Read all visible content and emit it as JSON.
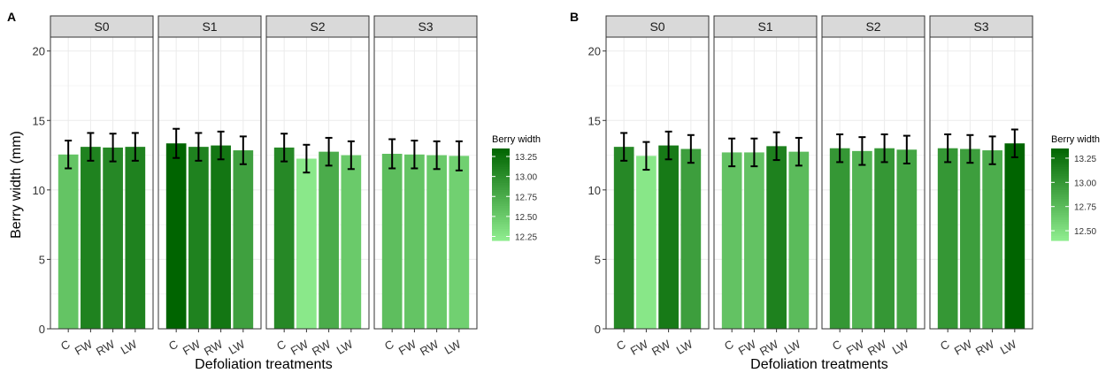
{
  "panels": [
    {
      "tag": "A",
      "ylabel": "Berry width (mm)",
      "xlabel": "Defoliation treatments",
      "yticks": [
        "0",
        "5",
        "10",
        "15",
        "20"
      ],
      "legend_title": "Berry width",
      "legend_labels": [
        "13.25",
        "13.00",
        "12.75",
        "12.50",
        "12.25"
      ],
      "facets": [
        {
          "strip": "S0",
          "categories": [
            "C",
            "FW",
            "RW",
            "LW"
          ]
        },
        {
          "strip": "S1",
          "categories": [
            "C",
            "FW",
            "RW",
            "LW"
          ]
        },
        {
          "strip": "S2",
          "categories": [
            "C",
            "FW",
            "RW",
            "LW"
          ]
        },
        {
          "strip": "S3",
          "categories": [
            "C",
            "FW",
            "RW",
            "LW"
          ]
        }
      ]
    },
    {
      "tag": "B",
      "ylabel": "",
      "xlabel": "Defoliation treatments",
      "yticks": [
        "0",
        "5",
        "10",
        "15",
        "20"
      ],
      "legend_title": "Berry width",
      "legend_labels": [
        "13.25",
        "13.00",
        "12.75",
        "12.50"
      ],
      "facets": [
        {
          "strip": "S0",
          "categories": [
            "C",
            "FW",
            "RW",
            "LW"
          ]
        },
        {
          "strip": "S1",
          "categories": [
            "C",
            "FW",
            "RW",
            "LW"
          ]
        },
        {
          "strip": "S2",
          "categories": [
            "C",
            "FW",
            "RW",
            "LW"
          ]
        },
        {
          "strip": "S3",
          "categories": [
            "C",
            "FW",
            "RW",
            "LW"
          ]
        }
      ]
    }
  ],
  "chart_data": [
    {
      "type": "bar",
      "panel": "A",
      "ylabel": "Berry width (mm)",
      "xlabel": "Defoliation treatments",
      "ylim": [
        0,
        21
      ],
      "yticks": [
        0,
        5,
        10,
        15,
        20
      ],
      "color_scale": {
        "title": "Berry width",
        "min": 12.2,
        "max": 13.35,
        "low_color": "#90EE90",
        "high_color": "#006400",
        "breaks": [
          12.25,
          12.5,
          12.75,
          13.0,
          13.25
        ]
      },
      "facets": [
        {
          "strip": "S0",
          "categories": [
            "C",
            "FW",
            "RW",
            "LW"
          ],
          "values": [
            12.55,
            13.1,
            13.05,
            13.1
          ],
          "errors": [
            1.0,
            1.0,
            1.0,
            1.0
          ]
        },
        {
          "strip": "S1",
          "categories": [
            "C",
            "FW",
            "RW",
            "LW"
          ],
          "values": [
            13.35,
            13.1,
            13.2,
            12.85
          ],
          "errors": [
            1.05,
            1.0,
            1.0,
            1.0
          ]
        },
        {
          "strip": "S2",
          "categories": [
            "C",
            "FW",
            "RW",
            "LW"
          ],
          "values": [
            13.05,
            12.25,
            12.75,
            12.5
          ],
          "errors": [
            1.0,
            1.0,
            1.0,
            1.0
          ]
        },
        {
          "strip": "S3",
          "categories": [
            "C",
            "FW",
            "RW",
            "LW"
          ],
          "values": [
            12.6,
            12.55,
            12.5,
            12.45
          ],
          "errors": [
            1.05,
            1.0,
            1.0,
            1.05
          ]
        }
      ],
      "grid": true,
      "legend_position": "right"
    },
    {
      "type": "bar",
      "panel": "B",
      "ylabel": "",
      "xlabel": "Defoliation treatments",
      "ylim": [
        0,
        21
      ],
      "yticks": [
        0,
        5,
        10,
        15,
        20
      ],
      "color_scale": {
        "title": "Berry width",
        "min": 12.4,
        "max": 13.35,
        "low_color": "#90EE90",
        "high_color": "#006400",
        "breaks": [
          12.5,
          12.75,
          13.0,
          13.25
        ]
      },
      "facets": [
        {
          "strip": "S0",
          "categories": [
            "C",
            "FW",
            "RW",
            "LW"
          ],
          "values": [
            13.1,
            12.45,
            13.2,
            12.95
          ],
          "errors": [
            1.0,
            1.0,
            1.0,
            1.0
          ]
        },
        {
          "strip": "S1",
          "categories": [
            "C",
            "FW",
            "RW",
            "LW"
          ],
          "values": [
            12.7,
            12.7,
            13.15,
            12.75
          ],
          "errors": [
            1.0,
            1.0,
            1.0,
            1.0
          ]
        },
        {
          "strip": "S2",
          "categories": [
            "C",
            "FW",
            "RW",
            "LW"
          ],
          "values": [
            13.0,
            12.8,
            13.0,
            12.9
          ],
          "errors": [
            1.0,
            1.0,
            1.0,
            1.0
          ]
        },
        {
          "strip": "S3",
          "categories": [
            "C",
            "FW",
            "RW",
            "LW"
          ],
          "values": [
            13.0,
            12.95,
            12.85,
            13.35
          ],
          "errors": [
            1.0,
            1.0,
            1.0,
            1.0
          ]
        }
      ],
      "grid": true,
      "legend_position": "right"
    }
  ]
}
